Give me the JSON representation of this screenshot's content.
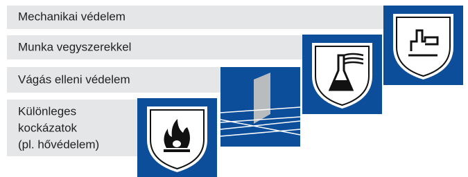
{
  "items": [
    {
      "label": [
        "Mechanikai védelem"
      ]
    },
    {
      "label": [
        "Munka vegyszerekkel"
      ]
    },
    {
      "label": [
        "Vágás elleni védelem"
      ]
    },
    {
      "label": [
        "Különleges",
        "kockázatok",
        "(pl. hővédelem)"
      ]
    }
  ]
}
